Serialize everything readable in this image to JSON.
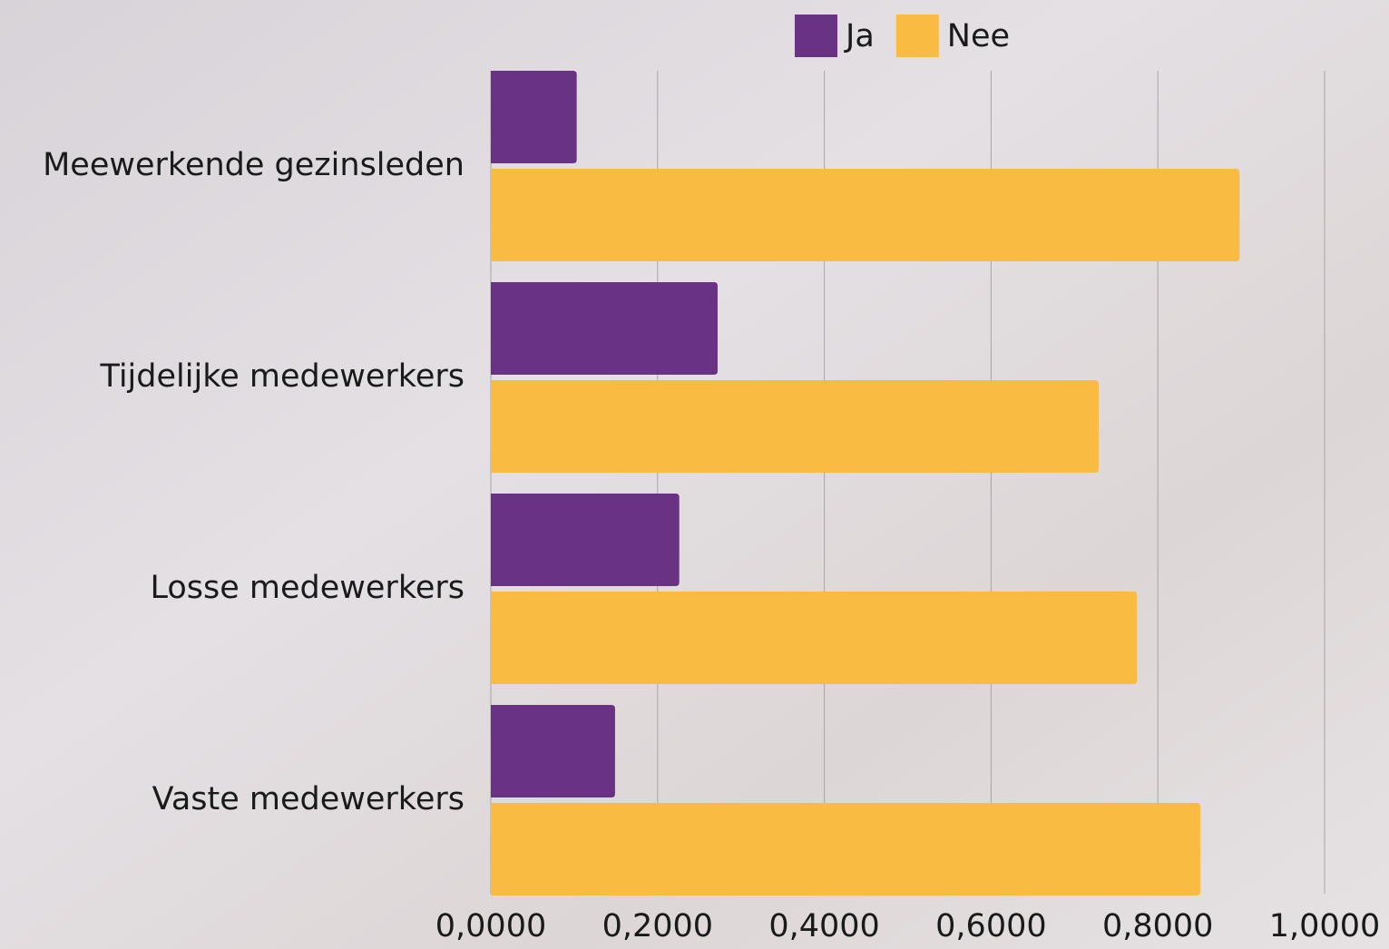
{
  "chart_data": {
    "type": "hbar",
    "categories": [
      "Meewerkende gezinsleden",
      "Tijdelijke medewerkers",
      "Losse medewerkers",
      "Vaste medewerkers"
    ],
    "series": [
      {
        "name": "Ja",
        "color": "#693283",
        "values": [
          0.103,
          0.272,
          0.226,
          0.149
        ]
      },
      {
        "name": "Nee",
        "color": "#f9bb42",
        "values": [
          0.898,
          0.729,
          0.775,
          0.851
        ]
      }
    ],
    "xlim": [
      0,
      1
    ],
    "xticks": [
      {
        "value": 0,
        "label": "0,0000"
      },
      {
        "value": 0.2,
        "label": "0,2000"
      },
      {
        "value": 0.4,
        "label": "0,4000"
      },
      {
        "value": 0.6,
        "label": "0,6000"
      },
      {
        "value": 0.8,
        "label": "0,8000"
      },
      {
        "value": 1,
        "label": "1,0000"
      }
    ],
    "grid": true,
    "legend": "top"
  }
}
